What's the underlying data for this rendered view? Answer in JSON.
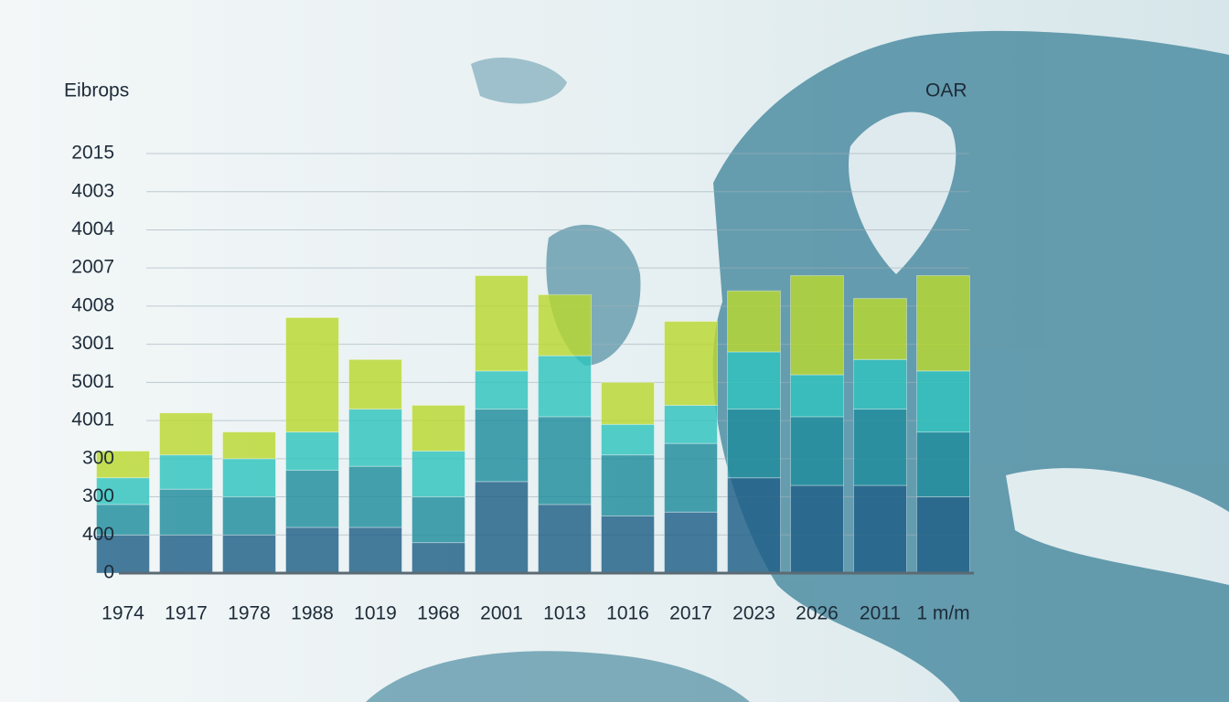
{
  "chart_data": {
    "type": "stacked_bar",
    "title": "Eibrops",
    "annotation": "OAR",
    "categories": [
      "1974",
      "1917",
      "1978",
      "1988",
      "1019",
      "1968",
      "2001",
      "1013",
      "1016",
      "2017",
      "2023",
      "2026",
      "2011",
      "1 m/m"
    ],
    "series": [
      {
        "color": "#1f5f86",
        "values": [
          1.0,
          1.0,
          1.0,
          1.2,
          1.2,
          0.8,
          2.4,
          1.8,
          1.5,
          1.6,
          2.5,
          2.3,
          2.3,
          2.0
        ]
      },
      {
        "color": "#1e8c9c",
        "values": [
          0.8,
          1.2,
          1.0,
          1.5,
          1.6,
          1.2,
          1.9,
          2.3,
          1.6,
          1.8,
          1.8,
          1.8,
          2.0,
          1.7
        ]
      },
      {
        "color": "#2fc3bd",
        "values": [
          0.7,
          0.9,
          1.0,
          1.0,
          1.5,
          1.2,
          1.0,
          1.6,
          0.8,
          1.0,
          1.5,
          1.1,
          1.3,
          1.6
        ]
      },
      {
        "color": "#b9d82f",
        "values": [
          0.7,
          1.1,
          0.7,
          3.0,
          1.3,
          1.2,
          2.5,
          1.6,
          1.1,
          2.2,
          1.6,
          2.6,
          1.6,
          2.5
        ]
      }
    ],
    "ylim": [
      0,
      11
    ],
    "yticks": [
      {
        "value": 0,
        "label": "0"
      },
      {
        "value": 1,
        "label": "400"
      },
      {
        "value": 2,
        "label": "300"
      },
      {
        "value": 3,
        "label": "300"
      },
      {
        "value": 4,
        "label": "4001"
      },
      {
        "value": 5,
        "label": "5001"
      },
      {
        "value": 6,
        "label": "3001"
      },
      {
        "value": 7,
        "label": "4008"
      },
      {
        "value": 8,
        "label": "2007"
      },
      {
        "value": 9,
        "label": "4004"
      },
      {
        "value": 10,
        "label": "4003"
      },
      {
        "value": 11,
        "label": "2015"
      }
    ],
    "grid": true
  }
}
